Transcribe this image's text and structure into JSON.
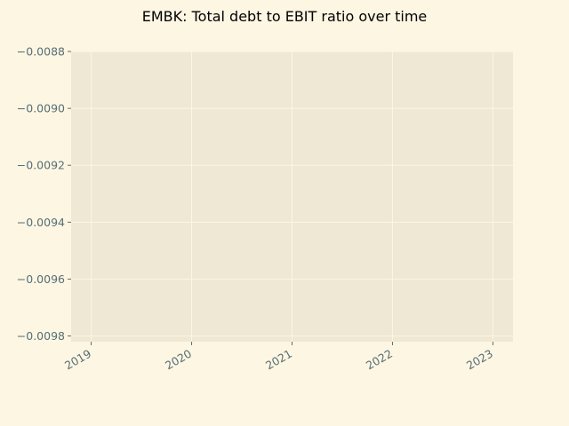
{
  "chart_data": {
    "type": "line",
    "title": "EMBK: Total debt to EBIT ratio over time",
    "xlabel": "",
    "ylabel": "",
    "x_ticks": [
      "2019",
      "2020",
      "2021",
      "2022",
      "2023"
    ],
    "y_ticks": [
      "−0.0088",
      "−0.0090",
      "−0.0092",
      "−0.0094",
      "−0.0096",
      "−0.0098"
    ],
    "y_tick_values": [
      -0.0088,
      -0.009,
      -0.0092,
      -0.0094,
      -0.0096,
      -0.0098
    ],
    "x_tick_values": [
      2019,
      2020,
      2021,
      2022,
      2023
    ],
    "xlim": [
      2018.8,
      2023.2
    ],
    "ylim": [
      -0.00982,
      -0.0088
    ],
    "series": [],
    "grid": true,
    "legend": "none",
    "colors": {
      "figure_background": "#fdf6e3",
      "plot_background": "#eee8d5",
      "text": "#586e75",
      "title": "#000000"
    }
  }
}
